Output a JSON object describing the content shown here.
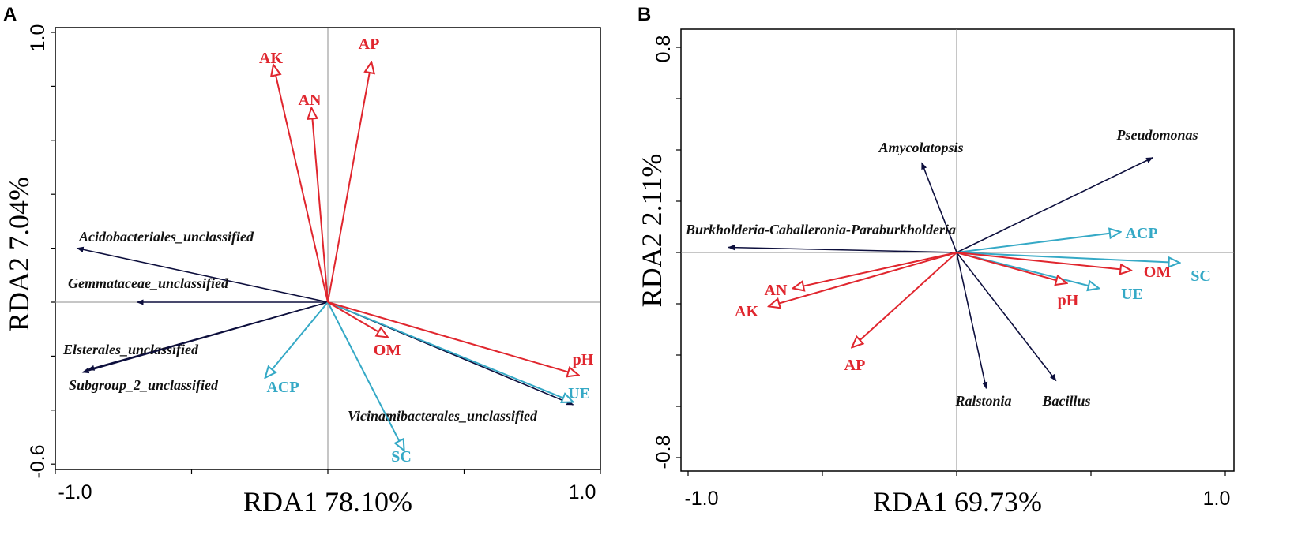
{
  "colors": {
    "species": "#0d0f3d",
    "red_env": "#e0262e",
    "blue_env": "#35a9c6"
  },
  "chart_data": [
    {
      "panel": "A",
      "type": "scatter",
      "title": "",
      "xlabel": "RDA1 78.10%",
      "ylabel": "RDA2 7.04%",
      "xlim": [
        -1.0,
        1.0
      ],
      "ylim": [
        -0.6,
        1.0
      ],
      "xticks_labeled": [
        "-1.0",
        "1.0"
      ],
      "yticks_labeled": [
        "1.0",
        "-0.6"
      ],
      "species": [
        {
          "name": "Acidobacteriales_unclassified",
          "x": -0.92,
          "y": 0.2
        },
        {
          "name": "Gemmataceae_unclassified",
          "x": -0.7,
          "y": 0.0
        },
        {
          "name": "Elsterales_unclassified",
          "x": -0.88,
          "y": -0.25
        },
        {
          "name": "Subgroup_2_unclassified",
          "x": -0.9,
          "y": -0.26
        },
        {
          "name": "Vicinamibacterales_unclassified",
          "x": 0.9,
          "y": -0.38
        }
      ],
      "env_red": [
        {
          "name": "AK",
          "x": -0.2,
          "y": 0.88
        },
        {
          "name": "AN",
          "x": -0.06,
          "y": 0.72
        },
        {
          "name": "AP",
          "x": 0.16,
          "y": 0.89
        },
        {
          "name": "OM",
          "x": 0.22,
          "y": -0.13
        },
        {
          "name": "pH",
          "x": 0.92,
          "y": -0.27
        }
      ],
      "env_blue": [
        {
          "name": "ACP",
          "x": -0.23,
          "y": -0.28
        },
        {
          "name": "SC",
          "x": 0.28,
          "y": -0.55
        },
        {
          "name": "UE",
          "x": 0.9,
          "y": -0.37
        }
      ]
    },
    {
      "panel": "B",
      "type": "scatter",
      "title": "",
      "xlabel": "RDA1 69.73%",
      "ylabel": "RDA2 2.11%",
      "xlim": [
        -1.0,
        1.0
      ],
      "ylim": [
        -0.8,
        0.8
      ],
      "xticks_labeled": [
        "-1.0",
        "1.0"
      ],
      "yticks_labeled": [
        "0.8",
        "-0.8"
      ],
      "species": [
        {
          "name": "Amycolatopsis",
          "x": -0.13,
          "y": 0.35
        },
        {
          "name": "Pseudomonas",
          "x": 0.73,
          "y": 0.37
        },
        {
          "name": "Burkholderia-Caballeronia-Paraburkholderia",
          "x": -0.85,
          "y": 0.02
        },
        {
          "name": "Ralstonia",
          "x": 0.11,
          "y": -0.53
        },
        {
          "name": "Bacillus",
          "x": 0.37,
          "y": -0.5
        }
      ],
      "env_red": [
        {
          "name": "AN",
          "x": -0.61,
          "y": -0.14
        },
        {
          "name": "AK",
          "x": -0.7,
          "y": -0.21
        },
        {
          "name": "AP",
          "x": -0.39,
          "y": -0.37
        },
        {
          "name": "OM",
          "x": 0.65,
          "y": -0.07
        },
        {
          "name": "pH",
          "x": 0.41,
          "y": -0.12
        }
      ],
      "env_blue": [
        {
          "name": "ACP",
          "x": 0.61,
          "y": 0.08
        },
        {
          "name": "SC",
          "x": 0.83,
          "y": -0.04
        },
        {
          "name": "UE",
          "x": 0.53,
          "y": -0.14
        }
      ]
    }
  ]
}
